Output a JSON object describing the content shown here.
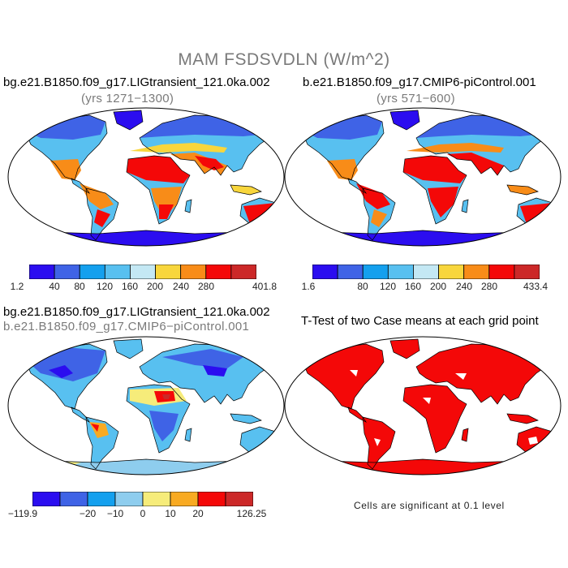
{
  "figure": {
    "title": "MAM FSDSVDLN (W/m^2)",
    "significance_note": "Cells are significant at 0.1 level"
  },
  "panels": {
    "top_left": {
      "case": "bg.e21.B1850.f09_g17.LIGtransient_121.0ka.002",
      "years": "(yrs 1271−1300)",
      "colorbar": {
        "colors": [
          "#2b0df0",
          "#3f63e6",
          "#14a0ee",
          "#58c0f0",
          "#c4e8f4",
          "#f8d63c",
          "#f88c18",
          "#f40808",
          "#cc2828"
        ],
        "labels": [
          "1.2",
          "40",
          "80",
          "120",
          "160",
          "200",
          "240",
          "280",
          "401.8"
        ]
      }
    },
    "top_right": {
      "case": "b.e21.B1850.f09_g17.CMIP6-piControl.001",
      "years": "(yrs 571−600)",
      "colorbar": {
        "colors": [
          "#2b0df0",
          "#3f63e6",
          "#14a0ee",
          "#58c0f0",
          "#c4e8f4",
          "#f8d63c",
          "#f88c18",
          "#f40808",
          "#cc2828"
        ],
        "labels": [
          "1.6",
          "80",
          "120",
          "160",
          "200",
          "240",
          "280",
          "433.4"
        ]
      }
    },
    "bottom_left": {
      "case_a": "bg.e21.B1850.f09_g17.LIGtransient_121.0ka.002",
      "case_b": "b.e21.B1850.f09_g17.CMIP6−piControl.001",
      "colorbar": {
        "colors": [
          "#2b0df0",
          "#3f63e6",
          "#14a0ee",
          "#8ecdee",
          "#f6ec7a",
          "#f8aa22",
          "#f40808",
          "#cc2828"
        ],
        "labels": [
          "−119.9",
          "−20",
          "−10",
          "0",
          "10",
          "20",
          "126.25"
        ]
      }
    },
    "bottom_right": {
      "title": "T-Test of two Case means at each grid point"
    }
  }
}
